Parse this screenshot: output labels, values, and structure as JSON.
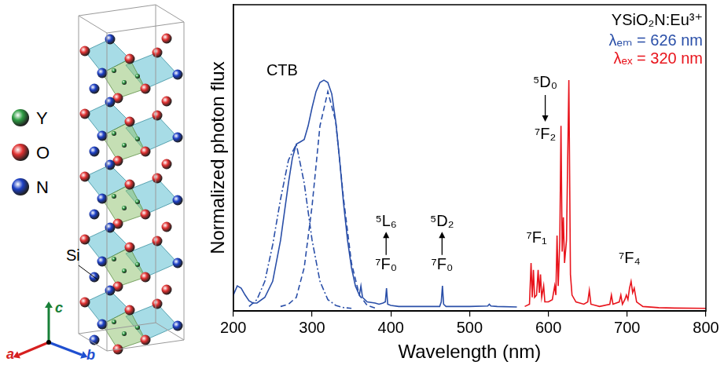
{
  "structure": {
    "legend": [
      {
        "label": "Y",
        "color": "#2f9e44"
      },
      {
        "label": "O",
        "color": "#e03131"
      },
      {
        "label": "N",
        "color": "#1c3fc4"
      }
    ],
    "si_label": "Si",
    "axes": [
      {
        "label": "a",
        "color": "#d61f1f"
      },
      {
        "label": "b",
        "color": "#1f4fd0"
      },
      {
        "label": "c",
        "color": "#188038"
      }
    ]
  },
  "chart_data": {
    "type": "line",
    "xlabel": "Wavelength (nm)",
    "ylabel": "Normalized photon flux",
    "xlim": [
      200,
      800
    ],
    "xticks": [
      200,
      300,
      400,
      500,
      600,
      700,
      800
    ],
    "ylim": [
      -0.01,
      1.33
    ],
    "yticks": [],
    "tick_labels": "x",
    "grid": false,
    "series": [
      {
        "color": "#2a4fa8",
        "line_style": "solid",
        "x": [
          200,
          205,
          210,
          215,
          220,
          225,
          230,
          240,
          250,
          260,
          270,
          275,
          280,
          285,
          290,
          295,
          300,
          305,
          310,
          315,
          320,
          325,
          330,
          335,
          340,
          345,
          350,
          355,
          360,
          362,
          364,
          370,
          380,
          385,
          390,
          393,
          394.5,
          396,
          400,
          410,
          450,
          462,
          464,
          465.5,
          467,
          470,
          500,
          523,
          525,
          527,
          535,
          560
        ],
        "values": [
          0.06,
          0.1,
          0.09,
          0.06,
          0.035,
          0.025,
          0.025,
          0.05,
          0.12,
          0.3,
          0.55,
          0.66,
          0.72,
          0.73,
          0.74,
          0.8,
          0.88,
          0.95,
          0.99,
          1.0,
          0.99,
          0.94,
          0.82,
          0.65,
          0.46,
          0.3,
          0.18,
          0.1,
          0.06,
          0.1,
          0.05,
          0.03,
          0.025,
          0.02,
          0.025,
          0.03,
          0.09,
          0.02,
          0.015,
          0.01,
          0.01,
          0.01,
          0.03,
          0.1,
          0.02,
          0.01,
          0.01,
          0.012,
          0.02,
          0.012,
          0.01,
          0.008
        ]
      },
      {
        "color": "#2a4fa8",
        "line_style": "dashdot",
        "x": [
          220,
          230,
          240,
          250,
          260,
          270,
          280,
          290,
          300,
          310,
          320,
          330,
          340,
          350
        ],
        "values": [
          0.01,
          0.04,
          0.12,
          0.28,
          0.48,
          0.65,
          0.72,
          0.55,
          0.3,
          0.12,
          0.04,
          0.015,
          0.005,
          0.002
        ]
      },
      {
        "color": "#2a4fa8",
        "line_style": "dashed",
        "x": [
          260,
          270,
          280,
          290,
          300,
          310,
          320,
          330,
          340,
          350,
          360,
          370,
          380
        ],
        "values": [
          0.01,
          0.02,
          0.05,
          0.18,
          0.45,
          0.8,
          0.95,
          0.82,
          0.48,
          0.2,
          0.06,
          0.015,
          0.003
        ]
      },
      {
        "color": "#e8141c",
        "line_style": "solid",
        "x": [
          570,
          576,
          578,
          579.5,
          581,
          582.5,
          585,
          587,
          588.5,
          590,
          591.5,
          594,
          595.5,
          600,
          605,
          608,
          609.5,
          611,
          612.5,
          614.5,
          616,
          617.5,
          619,
          620.5,
          623,
          626,
          628,
          630,
          635,
          645,
          650,
          652,
          654,
          665,
          678,
          680,
          682,
          690,
          692,
          694,
          697,
          699,
          701,
          703,
          705,
          707,
          709,
          712,
          720,
          740,
          760,
          800
        ],
        "values": [
          0.01,
          0.02,
          0.2,
          0.05,
          0.17,
          0.05,
          0.06,
          0.17,
          0.07,
          0.15,
          0.05,
          0.1,
          0.03,
          0.03,
          0.04,
          0.1,
          0.06,
          0.32,
          0.1,
          0.3,
          0.8,
          0.25,
          0.4,
          0.2,
          0.3,
          1.0,
          0.15,
          0.06,
          0.03,
          0.02,
          0.03,
          0.08,
          0.02,
          0.01,
          0.02,
          0.06,
          0.02,
          0.03,
          0.06,
          0.02,
          0.04,
          0.06,
          0.04,
          0.09,
          0.12,
          0.07,
          0.09,
          0.03,
          0.01,
          0.005,
          0.003,
          0.002
        ]
      }
    ],
    "annotations": [
      {
        "text": "YSiO₂N:Eu³⁺",
        "color": "#000000"
      },
      {
        "text": "λₑₘ = 626 nm",
        "color": "#2a4fa8"
      },
      {
        "text": "λₑₓ = 320 nm",
        "color": "#e8141c"
      },
      {
        "text": "CTB",
        "color": "#000000"
      },
      {
        "text": "⁵L₆",
        "color": "#000000"
      },
      {
        "text": "⁷F₀",
        "color": "#000000"
      },
      {
        "text": "⁵D₂",
        "color": "#000000"
      },
      {
        "text": "⁷F₀",
        "color": "#000000"
      },
      {
        "text": "⁵D₀",
        "color": "#000000"
      },
      {
        "text": "⁷F₂",
        "color": "#000000"
      },
      {
        "text": "⁷F₁",
        "color": "#000000"
      },
      {
        "text": "⁷F₄",
        "color": "#000000"
      }
    ]
  }
}
